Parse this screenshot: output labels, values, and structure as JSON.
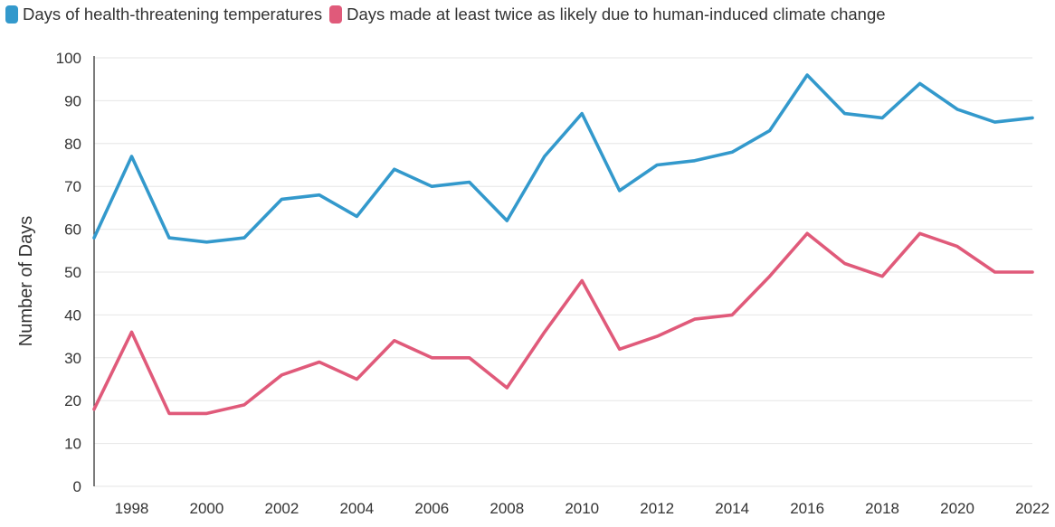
{
  "chart_data": {
    "type": "line",
    "title": "",
    "xlabel": "",
    "ylabel": "Number of Days",
    "ylim": [
      0,
      100
    ],
    "xlim": [
      1997,
      2022
    ],
    "yticks": [
      0,
      10,
      20,
      30,
      40,
      50,
      60,
      70,
      80,
      90,
      100
    ],
    "xticks": [
      1998,
      2000,
      2002,
      2004,
      2006,
      2008,
      2010,
      2012,
      2014,
      2016,
      2018,
      2020,
      2022
    ],
    "grid": true,
    "legend_position": "top-left",
    "x": [
      1997,
      1998,
      1999,
      2000,
      2001,
      2002,
      2003,
      2004,
      2005,
      2006,
      2007,
      2008,
      2009,
      2010,
      2011,
      2012,
      2013,
      2014,
      2015,
      2016,
      2017,
      2018,
      2019,
      2020,
      2021,
      2022
    ],
    "series": [
      {
        "name": "Days of health-threatening temperatures",
        "color": "#3399cc",
        "values": [
          58,
          77,
          58,
          57,
          58,
          67,
          68,
          63,
          74,
          70,
          71,
          62,
          77,
          87,
          69,
          75,
          76,
          78,
          83,
          96,
          87,
          86,
          94,
          88,
          85,
          86
        ]
      },
      {
        "name": "Days made at least twice as likely due to human-induced climate change",
        "color": "#e05a7a",
        "values": [
          18,
          36,
          17,
          17,
          19,
          26,
          29,
          25,
          34,
          30,
          30,
          23,
          36,
          48,
          32,
          35,
          39,
          40,
          49,
          59,
          52,
          49,
          59,
          56,
          50,
          50
        ]
      }
    ]
  }
}
